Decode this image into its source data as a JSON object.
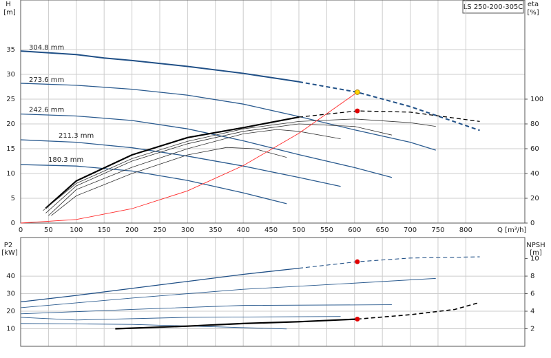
{
  "chart_data": [
    {
      "type": "line",
      "title": "LS 250-200-305C",
      "y_label": "H",
      "y_unit": "[m]",
      "y2_label": "eta",
      "y2_unit": "[%]",
      "x_label": "Q [m³/h]",
      "xlim": [
        0,
        906
      ],
      "xticks": [
        0,
        50,
        100,
        150,
        200,
        250,
        300,
        350,
        400,
        450,
        500,
        550,
        600,
        650,
        700,
        750,
        800
      ],
      "ylim": [
        0,
        45
      ],
      "yticks": [
        0,
        5,
        10,
        15,
        20,
        25,
        30,
        35
      ],
      "y2lim": [
        0,
        180
      ],
      "y2ticks": [
        0,
        20,
        40,
        60,
        80,
        100
      ],
      "grid": true,
      "series": [
        {
          "name": "304.8 mm",
          "color": "#1f4f86",
          "width": 2,
          "dash": false,
          "x": [
            0,
            100,
            150,
            200,
            300,
            400,
            500
          ],
          "values": [
            34.7,
            34.0,
            33.3,
            32.8,
            31.6,
            30.2,
            28.5
          ]
        },
        {
          "color": "#1f4f86",
          "width": 2,
          "dash": true,
          "x": [
            500,
            605,
            700,
            825
          ],
          "values": [
            28.5,
            26.4,
            23.5,
            18.7
          ]
        },
        {
          "name": "273.6 mm",
          "color": "#2b5b8f",
          "width": 1.3,
          "dash": false,
          "x": [
            0,
            100,
            200,
            300,
            400,
            500,
            600,
            700,
            746
          ],
          "values": [
            28.2,
            27.8,
            27.0,
            25.8,
            24.0,
            21.5,
            18.8,
            16.3,
            14.7
          ]
        },
        {
          "name": "242.6 mm",
          "color": "#2b5b8f",
          "width": 1.3,
          "dash": false,
          "x": [
            0,
            100,
            200,
            300,
            400,
            500,
            600,
            667
          ],
          "values": [
            22.0,
            21.6,
            20.7,
            19.0,
            16.6,
            13.8,
            11.2,
            9.2
          ]
        },
        {
          "name": "211.3 mm",
          "color": "#2b5b8f",
          "width": 1.3,
          "dash": false,
          "x": [
            0,
            100,
            200,
            300,
            400,
            500,
            575
          ],
          "values": [
            16.8,
            16.3,
            15.2,
            13.5,
            11.5,
            9.2,
            7.4
          ]
        },
        {
          "name": "180.3 mm",
          "color": "#2b5b8f",
          "width": 1.3,
          "dash": false,
          "x": [
            0,
            100,
            200,
            300,
            400,
            478
          ],
          "values": [
            11.8,
            11.5,
            10.5,
            8.6,
            6.1,
            3.9
          ]
        },
        {
          "color": "#000000",
          "width": 2.2,
          "dash": false,
          "axis": "y2",
          "x": [
            45,
            100,
            200,
            300,
            400,
            500
          ],
          "values": [
            12,
            34,
            55,
            69,
            77,
            85.5
          ]
        },
        {
          "color": "#000000",
          "width": 1.3,
          "dash": true,
          "axis": "y2",
          "x": [
            500,
            605,
            700,
            825
          ],
          "values": [
            85.5,
            90.5,
            89.5,
            82
          ]
        },
        {
          "color": "#333333",
          "width": 0.8,
          "dash": false,
          "axis": "y2",
          "x": [
            40,
            100,
            200,
            300,
            400,
            500,
            600,
            700,
            746
          ],
          "values": [
            10,
            32,
            52,
            66,
            76,
            82,
            84,
            81,
            78
          ]
        },
        {
          "color": "#333333",
          "width": 0.8,
          "dash": false,
          "axis": "y2",
          "x": [
            45,
            100,
            200,
            300,
            400,
            500,
            600,
            667
          ],
          "values": [
            8,
            30,
            50,
            64,
            74,
            80,
            78,
            71
          ]
        },
        {
          "color": "#333333",
          "width": 0.8,
          "dash": false,
          "axis": "y2",
          "x": [
            50,
            100,
            200,
            300,
            400,
            460,
            500,
            575
          ],
          "values": [
            6,
            27,
            45,
            60,
            72,
            75.5,
            74,
            68
          ]
        },
        {
          "color": "#333333",
          "width": 0.8,
          "dash": false,
          "axis": "y2",
          "x": [
            55,
            100,
            200,
            300,
            370,
            420,
            478
          ],
          "values": [
            6,
            22,
            40,
            55,
            61,
            60,
            53
          ]
        },
        {
          "color": "#ff2a2a",
          "width": 0.9,
          "dash": false,
          "x": [
            0,
            100,
            200,
            300,
            400,
            500,
            605
          ],
          "values": [
            0,
            0.72,
            2.9,
            6.5,
            11.6,
            18.1,
            26.4
          ]
        }
      ],
      "points": [
        {
          "color": "#ffd400",
          "x": 605,
          "value": 26.4
        },
        {
          "color": "#e00000",
          "axis": "y2",
          "x": 605,
          "value": 90.5
        }
      ]
    },
    {
      "type": "line",
      "y_label": "P2",
      "y_unit": "[kW]",
      "y2_label": "NPSH",
      "y2_unit": "[m]",
      "ylim": [
        0,
        62
      ],
      "yticks": [
        10,
        20,
        30,
        40
      ],
      "y2lim": [
        0,
        12.4
      ],
      "y2ticks": [
        2,
        4,
        6,
        8,
        10
      ],
      "grid": true,
      "series": [
        {
          "color": "#1f4f86",
          "width": 1.3,
          "dash": false,
          "x": [
            0,
            100,
            200,
            300,
            400,
            500
          ],
          "values": [
            25.3,
            29,
            33,
            37,
            41,
            44.5
          ]
        },
        {
          "color": "#1f4f86",
          "width": 1.1,
          "dash": true,
          "x": [
            500,
            605,
            700,
            825
          ],
          "values": [
            44.5,
            48.2,
            50.3,
            51
          ]
        },
        {
          "color": "#2b5b8f",
          "width": 0.9,
          "dash": false,
          "x": [
            0,
            200,
            400,
            600,
            746
          ],
          "values": [
            22,
            27.5,
            32.5,
            36,
            38.7
          ]
        },
        {
          "color": "#2b5b8f",
          "width": 0.9,
          "dash": false,
          "x": [
            0,
            200,
            400,
            667
          ],
          "values": [
            18.5,
            21,
            23.3,
            23.7
          ]
        },
        {
          "color": "#2b5b8f",
          "width": 0.9,
          "dash": false,
          "x": [
            0,
            100,
            300,
            575
          ],
          "values": [
            16.5,
            15,
            16.5,
            17
          ]
        },
        {
          "color": "#2b5b8f",
          "width": 0.9,
          "dash": false,
          "x": [
            0,
            200,
            478
          ],
          "values": [
            13,
            12.5,
            9.9
          ]
        },
        {
          "color": "#000000",
          "width": 2.2,
          "dash": false,
          "axis": "y2",
          "x": [
            170,
            300,
            400,
            500,
            605
          ],
          "values": [
            2.0,
            2.3,
            2.6,
            2.8,
            3.1
          ]
        },
        {
          "color": "#000000",
          "width": 1.6,
          "dash": true,
          "axis": "y2",
          "x": [
            605,
            700,
            780,
            825
          ],
          "values": [
            3.1,
            3.6,
            4.2,
            5.0
          ]
        }
      ],
      "points": [
        {
          "color": "#e00000",
          "x": 605,
          "value": 48.2
        },
        {
          "color": "#e00000",
          "axis": "y2",
          "x": 605,
          "value": 3.1
        }
      ]
    }
  ]
}
